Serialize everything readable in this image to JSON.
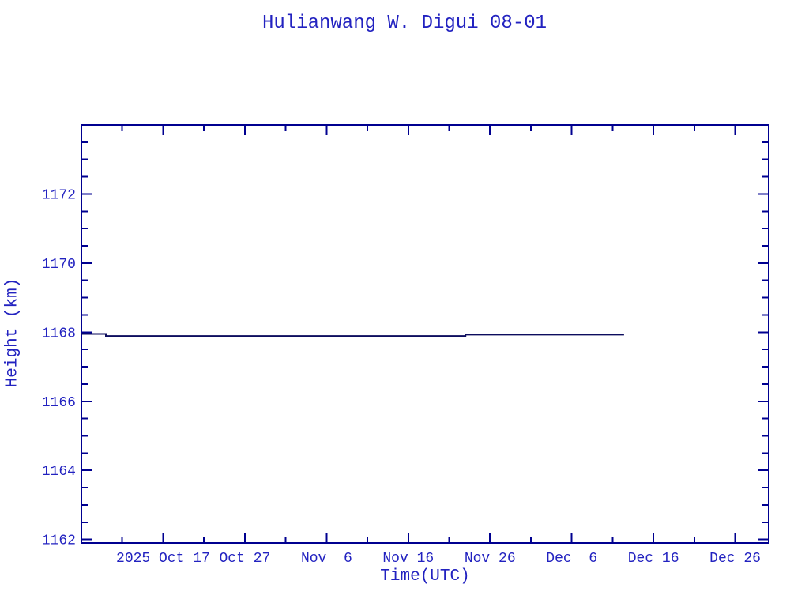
{
  "page": {
    "background": "#ffffff"
  },
  "colors": {
    "label_blue": "#2222c0",
    "axis_blue": "#000090",
    "line_navy": "#0d0d5e"
  },
  "chart_data": {
    "type": "line",
    "title": "Hulianwang W. Digui 08-01",
    "xlabel": "Time(UTC)",
    "ylabel": "Height (km)",
    "grid": false,
    "legend": false,
    "x_axis": {
      "unit": "days since 2025-10-07 (UTC)",
      "range": [
        0,
        84.1
      ],
      "major_ticks": [
        {
          "day": 10,
          "label": "2025 Oct 17"
        },
        {
          "day": 20,
          "label": "Oct 27"
        },
        {
          "day": 30,
          "label": "Nov  6"
        },
        {
          "day": 40,
          "label": "Nov 16"
        },
        {
          "day": 50,
          "label": "Nov 26"
        },
        {
          "day": 60,
          "label": "Dec  6"
        },
        {
          "day": 70,
          "label": "Dec 16"
        },
        {
          "day": 80,
          "label": "Dec 26"
        }
      ],
      "minor_tick_interval": 5
    },
    "y_axis": {
      "range": [
        1161.9,
        1174.0
      ],
      "major_ticks": [
        1162,
        1164,
        1166,
        1168,
        1170,
        1172
      ],
      "minor_tick_interval": 0.5
    },
    "series": [
      {
        "name": "height",
        "points": [
          [
            0,
            1167.95
          ],
          [
            3,
            1167.95
          ],
          [
            3,
            1167.89
          ],
          [
            47,
            1167.89
          ],
          [
            47,
            1167.93
          ],
          [
            66.4,
            1167.93
          ]
        ],
        "segments_readable": [
          "2025-10-07 to 2025-10-10: 1167.95 km",
          "2025-10-10 to 2025-11-23: 1167.89 km",
          "2025-11-23 to 2025-12-12: 1167.93 km"
        ]
      }
    ]
  }
}
